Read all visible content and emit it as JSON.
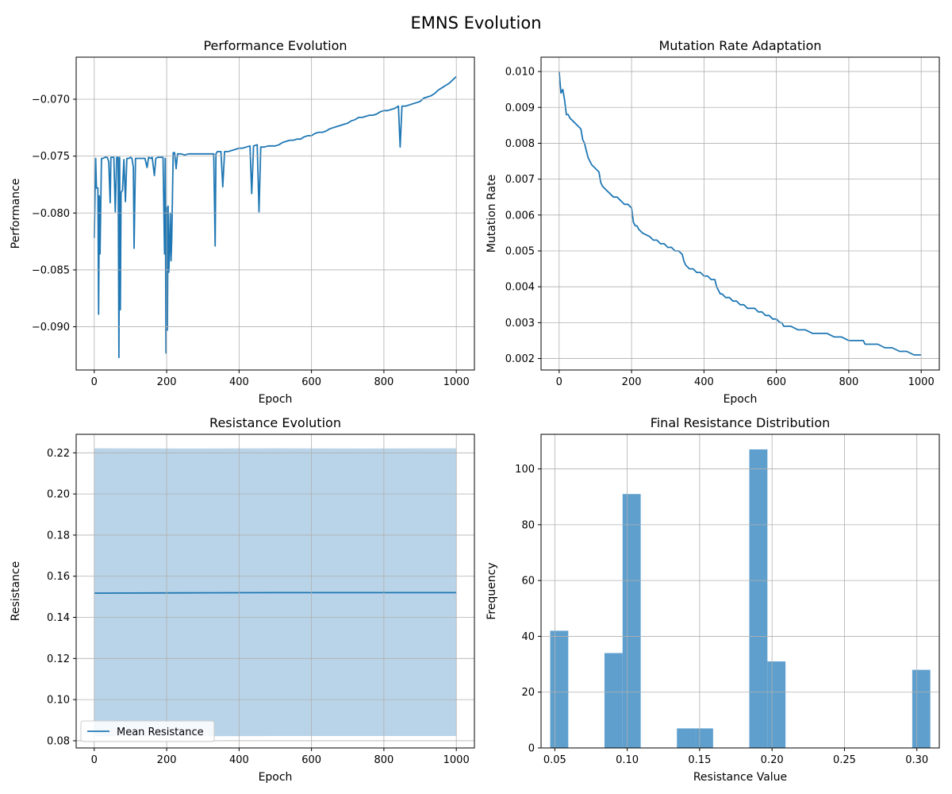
{
  "figure": {
    "title": "EMNS Evolution"
  },
  "chart_data": [
    {
      "id": "performance",
      "type": "line",
      "title": "Performance Evolution",
      "xlabel": "Epoch",
      "ylabel": "Performance",
      "xlim": [
        -50,
        1050
      ],
      "ylim": [
        -0.0938,
        -0.0663
      ],
      "xticks": [
        0,
        200,
        400,
        600,
        800,
        1000
      ],
      "yticks": [
        -0.09,
        -0.085,
        -0.08,
        -0.075,
        -0.07
      ],
      "ytick_labels": [
        "−0.090",
        "−0.085",
        "−0.080",
        "−0.075",
        "−0.070"
      ],
      "grid": true,
      "color": "#1f77b4",
      "series": [
        {
          "x": [
            0,
            4,
            6,
            10,
            12,
            14,
            16,
            20,
            24,
            30,
            36,
            40,
            44,
            46,
            48,
            54,
            58,
            62,
            66,
            68,
            70,
            72,
            74,
            78,
            82,
            86,
            90,
            96,
            100,
            104,
            108,
            110,
            114,
            120,
            126,
            130,
            136,
            140,
            146,
            150,
            156,
            160,
            166,
            170,
            176,
            180,
            186,
            190,
            194,
            196,
            198,
            200,
            202,
            204,
            206,
            208,
            210,
            212,
            214,
            218,
            222,
            226,
            230,
            240,
            250,
            260,
            270,
            280,
            290,
            300,
            310,
            320,
            330,
            334,
            336,
            340,
            350,
            355,
            360,
            370,
            380,
            390,
            400,
            410,
            420,
            430,
            435,
            440,
            450,
            455,
            460,
            470,
            480,
            490,
            500,
            510,
            520,
            530,
            540,
            550,
            560,
            570,
            580,
            590,
            600,
            610,
            620,
            630,
            640,
            650,
            660,
            670,
            680,
            690,
            700,
            710,
            720,
            730,
            740,
            750,
            760,
            770,
            780,
            790,
            800,
            810,
            820,
            830,
            840,
            845,
            850,
            860,
            870,
            880,
            890,
            900,
            910,
            920,
            930,
            940,
            950,
            960,
            970,
            980,
            990,
            1000
          ],
          "y": [
            -0.0822,
            -0.0752,
            -0.0778,
            -0.0778,
            -0.0889,
            -0.0785,
            -0.0836,
            -0.0752,
            -0.0752,
            -0.0751,
            -0.0751,
            -0.0755,
            -0.0791,
            -0.0751,
            -0.0751,
            -0.0751,
            -0.0799,
            -0.0751,
            -0.0751,
            -0.0927,
            -0.0751,
            -0.0885,
            -0.0782,
            -0.078,
            -0.0753,
            -0.079,
            -0.0752,
            -0.0752,
            -0.0751,
            -0.0752,
            -0.076,
            -0.0831,
            -0.0752,
            -0.0752,
            -0.0752,
            -0.0752,
            -0.0752,
            -0.0752,
            -0.076,
            -0.0751,
            -0.0752,
            -0.0751,
            -0.0767,
            -0.0752,
            -0.0751,
            -0.0751,
            -0.0751,
            -0.0751,
            -0.0836,
            -0.0752,
            -0.0923,
            -0.0795,
            -0.0903,
            -0.0794,
            -0.0852,
            -0.0832,
            -0.08,
            -0.0842,
            -0.0823,
            -0.0747,
            -0.0747,
            -0.0761,
            -0.0748,
            -0.0748,
            -0.0749,
            -0.0748,
            -0.0748,
            -0.0748,
            -0.0748,
            -0.0748,
            -0.0748,
            -0.0748,
            -0.0748,
            -0.0829,
            -0.0748,
            -0.0746,
            -0.0746,
            -0.0777,
            -0.0746,
            -0.0746,
            -0.0745,
            -0.0744,
            -0.0743,
            -0.0743,
            -0.0742,
            -0.0741,
            -0.0783,
            -0.0741,
            -0.074,
            -0.0799,
            -0.0742,
            -0.0742,
            -0.0741,
            -0.0741,
            -0.0741,
            -0.074,
            -0.0738,
            -0.0737,
            -0.0736,
            -0.0736,
            -0.0735,
            -0.0735,
            -0.0733,
            -0.0732,
            -0.0732,
            -0.073,
            -0.0729,
            -0.0729,
            -0.0728,
            -0.0726,
            -0.0725,
            -0.0724,
            -0.0723,
            -0.0722,
            -0.0721,
            -0.0719,
            -0.0718,
            -0.0716,
            -0.0716,
            -0.0715,
            -0.0714,
            -0.0714,
            -0.0713,
            -0.0711,
            -0.071,
            -0.071,
            -0.0709,
            -0.0708,
            -0.0706,
            -0.0742,
            -0.0706,
            -0.0706,
            -0.0705,
            -0.0704,
            -0.0703,
            -0.0702,
            -0.0699,
            -0.0698,
            -0.0697,
            -0.0695,
            -0.0692,
            -0.069,
            -0.0688,
            -0.0686,
            -0.0683,
            -0.068
          ]
        }
      ]
    },
    {
      "id": "mutation",
      "type": "line",
      "title": "Mutation Rate Adaptation",
      "xlabel": "Epoch",
      "ylabel": "Mutation Rate",
      "xlim": [
        -50,
        1050
      ],
      "ylim": [
        0.00168,
        0.0104
      ],
      "xticks": [
        0,
        200,
        400,
        600,
        800,
        1000
      ],
      "yticks": [
        0.002,
        0.003,
        0.004,
        0.005,
        0.006,
        0.007,
        0.008,
        0.009,
        0.01
      ],
      "ytick_labels": [
        "0.002",
        "0.003",
        "0.004",
        "0.005",
        "0.006",
        "0.007",
        "0.008",
        "0.009",
        "0.010"
      ],
      "grid": true,
      "color": "#1f77b4",
      "series": [
        {
          "x": [
            0,
            5,
            10,
            15,
            20,
            25,
            30,
            40,
            50,
            60,
            65,
            70,
            75,
            80,
            90,
            100,
            110,
            115,
            120,
            130,
            140,
            150,
            160,
            170,
            180,
            190,
            200,
            205,
            210,
            215,
            220,
            225,
            230,
            240,
            250,
            260,
            270,
            280,
            290,
            300,
            310,
            320,
            330,
            340,
            345,
            350,
            360,
            370,
            380,
            390,
            400,
            410,
            420,
            430,
            435,
            440,
            445,
            450,
            460,
            470,
            480,
            490,
            500,
            510,
            520,
            530,
            540,
            550,
            555,
            560,
            570,
            580,
            590,
            600,
            610,
            615,
            620,
            640,
            660,
            680,
            700,
            720,
            740,
            760,
            780,
            800,
            820,
            840,
            845,
            850,
            880,
            900,
            920,
            940,
            960,
            980,
            1000
          ],
          "y": [
            0.01,
            0.0094,
            0.0095,
            0.0092,
            0.0088,
            0.0088,
            0.0087,
            0.0086,
            0.0085,
            0.0084,
            0.0081,
            0.008,
            0.0078,
            0.0076,
            0.0074,
            0.0073,
            0.0072,
            0.0069,
            0.0068,
            0.0067,
            0.0066,
            0.0065,
            0.0065,
            0.0064,
            0.0063,
            0.0063,
            0.0062,
            0.0058,
            0.0057,
            0.0057,
            0.0056,
            0.00555,
            0.0055,
            0.00545,
            0.0054,
            0.0053,
            0.0053,
            0.0052,
            0.0052,
            0.0051,
            0.0051,
            0.005,
            0.005,
            0.0049,
            0.0047,
            0.0046,
            0.0045,
            0.0045,
            0.0044,
            0.0044,
            0.0043,
            0.0043,
            0.0042,
            0.0042,
            0.004,
            0.0039,
            0.0038,
            0.0038,
            0.0037,
            0.0037,
            0.0036,
            0.0036,
            0.0035,
            0.0035,
            0.0034,
            0.0034,
            0.0034,
            0.0033,
            0.0033,
            0.0033,
            0.0032,
            0.0032,
            0.0031,
            0.0031,
            0.003,
            0.003,
            0.0029,
            0.0029,
            0.0028,
            0.0028,
            0.0027,
            0.0027,
            0.0027,
            0.0026,
            0.0026,
            0.0025,
            0.0025,
            0.0025,
            0.0024,
            0.0024,
            0.0024,
            0.0023,
            0.0023,
            0.0022,
            0.0022,
            0.0021,
            0.0021
          ]
        }
      ]
    },
    {
      "id": "resistance",
      "type": "area",
      "title": "Resistance Evolution",
      "xlabel": "Epoch",
      "ylabel": "Resistance",
      "xlim": [
        -50,
        1050
      ],
      "ylim": [
        0.0765,
        0.229
      ],
      "xticks": [
        0,
        200,
        400,
        600,
        800,
        1000
      ],
      "yticks": [
        0.08,
        0.1,
        0.12,
        0.14,
        0.16,
        0.18,
        0.2,
        0.22
      ],
      "ytick_labels": [
        "0.08",
        "0.10",
        "0.12",
        "0.14",
        "0.16",
        "0.18",
        "0.20",
        "0.22"
      ],
      "grid": true,
      "color": "#1f77b4",
      "band_color": "#b9d4e8",
      "legend_position": "lower-left",
      "series": [
        {
          "name": "Mean Resistance",
          "x": [
            0,
            250,
            500,
            750,
            1000
          ],
          "y": [
            0.1518,
            0.1519,
            0.152,
            0.152,
            0.152
          ],
          "lower": [
            0.0822,
            0.0822,
            0.0823,
            0.0823,
            0.0823
          ],
          "upper": [
            0.2222,
            0.2221,
            0.2222,
            0.2221,
            0.2222
          ]
        }
      ]
    },
    {
      "id": "distribution",
      "type": "bar",
      "title": "Final Resistance Distribution",
      "xlabel": "Resistance Value",
      "ylabel": "Frequency",
      "xlim": [
        0.0405,
        0.3155
      ],
      "ylim": [
        0,
        112.4
      ],
      "xticks": [
        0.05,
        0.1,
        0.15,
        0.2,
        0.25,
        0.3
      ],
      "xtick_labels": [
        "0.05",
        "0.10",
        "0.15",
        "0.20",
        "0.25",
        "0.30"
      ],
      "yticks": [
        0,
        20,
        40,
        60,
        80,
        100
      ],
      "ytick_labels": [
        "0",
        "20",
        "40",
        "60",
        "80",
        "100"
      ],
      "grid": true,
      "color": "#5f9fcd",
      "bin_edges": [
        0.0468,
        0.0593,
        0.0718,
        0.0843,
        0.0968,
        0.1093,
        0.1218,
        0.1343,
        0.1468,
        0.1593,
        0.1718,
        0.1843,
        0.1968,
        0.2093,
        0.2218,
        0.2343,
        0.2468,
        0.2593,
        0.2718,
        0.2843,
        0.2968,
        0.3093
      ],
      "values": [
        42,
        0,
        0,
        34,
        91,
        0,
        0,
        7,
        7,
        0,
        0,
        107,
        31,
        0,
        0,
        0,
        0,
        0,
        0,
        0,
        28
      ]
    }
  ]
}
